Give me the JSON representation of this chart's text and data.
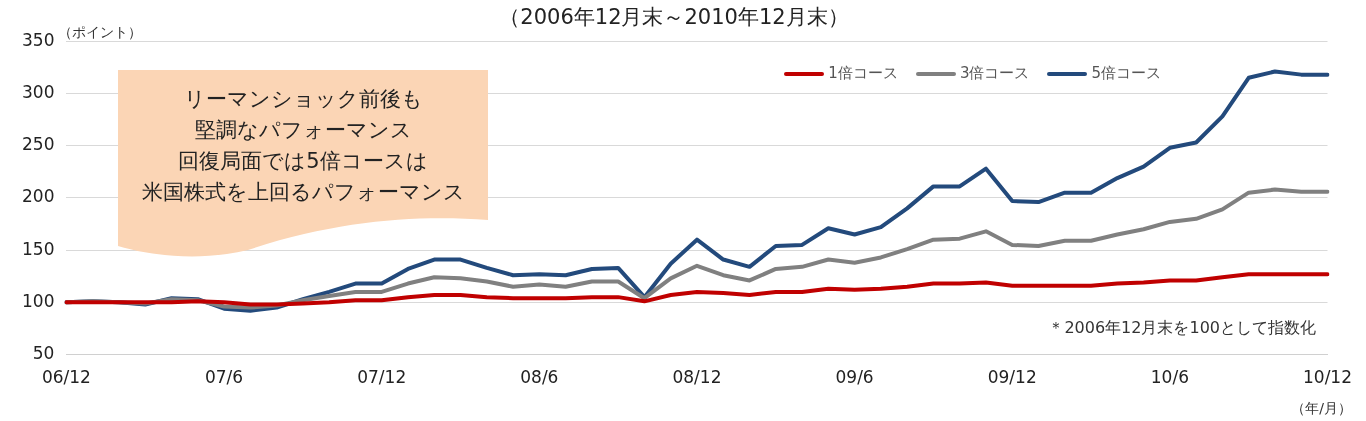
{
  "chart_data": {
    "type": "line",
    "title": "（2006年12月末～2010年12月末）",
    "ylabel": "（ポイント）",
    "xlabel": "（年/月）",
    "categories": [
      "06/12",
      null,
      null,
      null,
      null,
      null,
      "07/6",
      null,
      null,
      null,
      null,
      null,
      "07/12",
      null,
      null,
      null,
      null,
      null,
      "08/6",
      null,
      null,
      null,
      null,
      null,
      "08/12",
      null,
      null,
      null,
      null,
      null,
      "09/6",
      null,
      null,
      null,
      null,
      null,
      "09/12",
      null,
      null,
      null,
      null,
      null,
      "10/6",
      null,
      null,
      null,
      null,
      null,
      "10/12"
    ],
    "series": [
      {
        "name": "1倍コース",
        "color": "#c00000",
        "values": [
          100,
          100,
          100,
          100,
          100,
          101,
          100,
          98,
          98,
          99,
          100,
          102,
          102,
          105,
          107,
          107,
          105,
          104,
          104,
          104,
          105,
          105,
          101,
          107,
          110,
          109,
          107,
          110,
          110,
          113,
          112,
          113,
          115,
          118,
          118,
          119,
          116,
          116,
          116,
          116,
          118,
          119,
          121,
          121,
          124,
          127,
          127,
          127,
          127
        ]
      },
      {
        "name": "3倍コース",
        "color": "#808080",
        "values": [
          100,
          101,
          100,
          99,
          103,
          102,
          96,
          95,
          97,
          102,
          106,
          110,
          110,
          118,
          124,
          123,
          120,
          115,
          117,
          115,
          120,
          120,
          104,
          123,
          135,
          126,
          121,
          132,
          134,
          141,
          138,
          143,
          151,
          160,
          161,
          168,
          155,
          154,
          159,
          159,
          165,
          170,
          177,
          180,
          189,
          205,
          208,
          206,
          206
        ]
      },
      {
        "name": "5倍コース",
        "color": "#234a7c",
        "values": [
          100,
          101,
          100,
          98,
          104,
          103,
          94,
          92,
          95,
          103,
          110,
          118,
          118,
          132,
          141,
          141,
          133,
          126,
          127,
          126,
          132,
          133,
          105,
          137,
          160,
          141,
          134,
          154,
          155,
          171,
          165,
          172,
          190,
          211,
          211,
          228,
          197,
          196,
          205,
          205,
          219,
          230,
          248,
          253,
          278,
          315,
          321,
          318,
          318
        ]
      }
    ],
    "ylim": [
      50,
      350
    ],
    "yticks": [
      50,
      100,
      150,
      200,
      250,
      300,
      350
    ],
    "grid": "y",
    "legend": "top right",
    "marker": "none",
    "line_style": "solid",
    "annotations": [
      "リーマンショック前後も",
      "堅調なパフォーマンス",
      "回復局面では5倍コースは",
      "米国株式を上回るパフォーマンス",
      "＊2006年12月末を100として指数化"
    ]
  }
}
